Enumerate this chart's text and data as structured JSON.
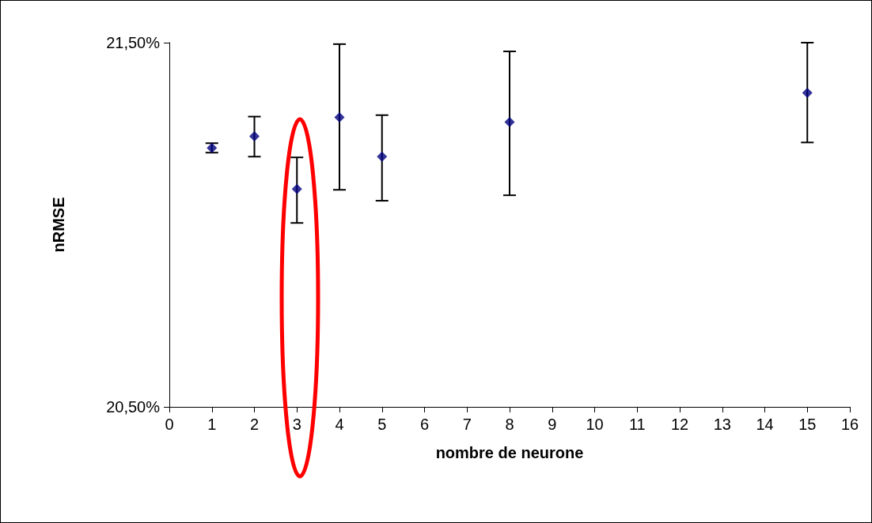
{
  "chart_data": {
    "type": "scatter",
    "xlabel": "nombre de neurone",
    "ylabel": "nRMSE",
    "x": [
      1,
      2,
      3,
      4,
      5,
      8,
      15
    ],
    "values": [
      21.211,
      21.243,
      21.098,
      21.295,
      21.187,
      21.282,
      21.362
    ],
    "errors": [
      [
        21.198,
        21.224
      ],
      [
        21.187,
        21.297
      ],
      [
        21.005,
        21.185
      ],
      [
        21.096,
        21.496
      ],
      [
        21.066,
        21.301
      ],
      [
        21.081,
        21.476
      ],
      [
        21.226,
        21.5
      ]
    ],
    "color": "#000080",
    "marker": "diamond",
    "xlim": [
      0,
      16
    ],
    "xticks": [
      0,
      1,
      2,
      3,
      4,
      5,
      6,
      7,
      8,
      9,
      10,
      11,
      12,
      13,
      14,
      15,
      16
    ],
    "ylim": [
      20.5,
      21.5
    ],
    "yticks": [
      {
        "value": 20.5,
        "label": "20,50%"
      },
      {
        "value": 21.5,
        "label": "21,50%"
      }
    ]
  }
}
